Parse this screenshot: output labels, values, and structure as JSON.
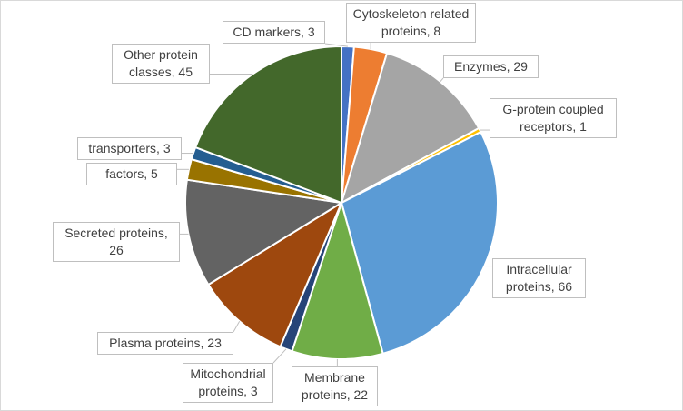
{
  "chart_data": {
    "type": "pie",
    "values": [
      3,
      8,
      29,
      1,
      66,
      22,
      3,
      23,
      26,
      5,
      3,
      45
    ],
    "value_labels": [
      "CD markers, 3",
      "Cytoskeleton related proteins, 8",
      "Enzymes, 29",
      "G-protein coupled receptors, 1",
      "Intracellular proteins, 66",
      "Membrane proteins, 22",
      "Mitochondrial proteins, 3",
      "Plasma proteins, 23",
      "Secreted proteins, 26",
      "factors, 5",
      "transporters, 3",
      "Other protein classes, 45"
    ],
    "colors": [
      "#4472c4",
      "#ed7d31",
      "#a5a5a5",
      "#ffc000",
      "#5b9bd5",
      "#70ad47",
      "#264478",
      "#9e480e",
      "#636363",
      "#997300",
      "#255e91",
      "#43682b"
    ]
  }
}
